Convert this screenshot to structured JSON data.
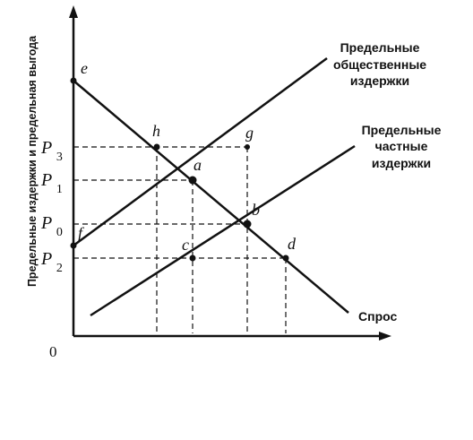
{
  "axes": {
    "y_axis_label": "Предельные издержки и предельная выгода",
    "origin_label": "0"
  },
  "price_labels": {
    "p3": "P3",
    "p1": "P1",
    "p0": "P0",
    "p2": "P2"
  },
  "point_labels": {
    "e": "e",
    "h": "h",
    "g": "g",
    "a": "a",
    "b": "b",
    "f": "f",
    "c": "c",
    "d": "d"
  },
  "curve_labels": {
    "social_cost": [
      "Предельные",
      "общественные",
      "издержки"
    ],
    "private_cost": [
      "Предельные",
      "частные",
      "издержки"
    ],
    "demand": "Спрос"
  },
  "colors": {
    "ink": "#111111",
    "background": "#ffffff"
  }
}
